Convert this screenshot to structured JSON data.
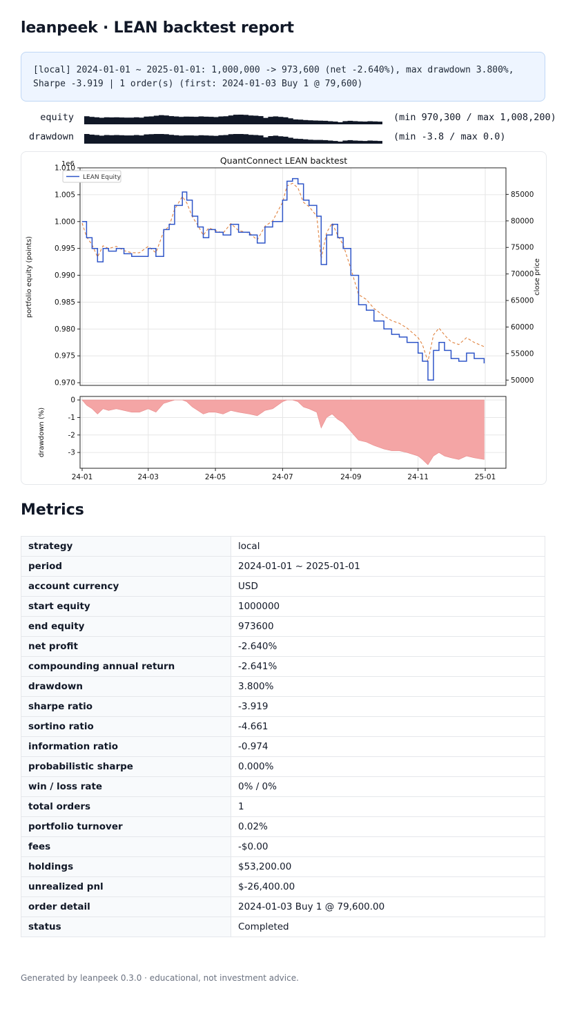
{
  "header": {
    "title": "leanpeek · LEAN backtest report"
  },
  "summary": {
    "line1": "[local] 2024-01-01 ~ 2025-01-01: 1,000,000 -> 973,600 (net -2.640%), max drawdown 3.800%,",
    "line2": "Sharpe -3.919 | 1 order(s) (first: 2024-01-03 Buy 1 @ 79,600)"
  },
  "sparklines": [
    {
      "label": "equity",
      "range_text": "(min 970,300 / max 1,008,200)"
    },
    {
      "label": "drawdown",
      "range_text": "(min -3.8 / max 0.0)"
    }
  ],
  "colors": {
    "equity_line": "#2e55c8",
    "price_line": "#e0823e",
    "drawdown_fill": "#f4a5a5",
    "spark": "#111827"
  },
  "chart_data": [
    {
      "type": "line",
      "title": "QuantConnect LEAN backtest",
      "ylabel": "portfolio equity (points)",
      "y_offset_text": "1e6",
      "y2label": "close price",
      "ylim": [
        0.9695,
        1.01
      ],
      "y2lim": [
        49000,
        90000
      ],
      "yticks": [
        0.97,
        0.975,
        0.98,
        0.985,
        0.99,
        0.995,
        1.0,
        1.005,
        1.01
      ],
      "y2ticks": [
        50000,
        55000,
        60000,
        65000,
        70000,
        75000,
        80000,
        85000
      ],
      "legend": "top-left",
      "grid": true,
      "series": [
        {
          "name": "LEAN Equity",
          "x": [
            "2024-01-01",
            "2024-01-05",
            "2024-01-10",
            "2024-01-15",
            "2024-01-20",
            "2024-01-25",
            "2024-02-01",
            "2024-02-08",
            "2024-02-15",
            "2024-02-22",
            "2024-03-01",
            "2024-03-08",
            "2024-03-15",
            "2024-03-20",
            "2024-03-25",
            "2024-04-01",
            "2024-04-05",
            "2024-04-10",
            "2024-04-15",
            "2024-04-20",
            "2024-04-25",
            "2024-05-01",
            "2024-05-08",
            "2024-05-15",
            "2024-05-22",
            "2024-06-01",
            "2024-06-08",
            "2024-06-15",
            "2024-06-22",
            "2024-07-01",
            "2024-07-05",
            "2024-07-10",
            "2024-07-15",
            "2024-07-20",
            "2024-07-25",
            "2024-08-01",
            "2024-08-05",
            "2024-08-10",
            "2024-08-15",
            "2024-08-20",
            "2024-08-25",
            "2024-09-01",
            "2024-09-08",
            "2024-09-15",
            "2024-09-22",
            "2024-10-01",
            "2024-10-08",
            "2024-10-15",
            "2024-10-22",
            "2024-11-01",
            "2024-11-05",
            "2024-11-10",
            "2024-11-15",
            "2024-11-20",
            "2024-11-25",
            "2024-12-01",
            "2024-12-08",
            "2024-12-15",
            "2024-12-22",
            "2024-12-31"
          ],
          "y": [
            1.0,
            0.997,
            0.995,
            0.9925,
            0.995,
            0.9945,
            0.995,
            0.994,
            0.9935,
            0.9935,
            0.995,
            0.9935,
            0.9985,
            0.9995,
            1.003,
            1.0055,
            1.004,
            1.001,
            0.999,
            0.997,
            0.9985,
            0.998,
            0.9975,
            0.9995,
            0.998,
            0.9975,
            0.996,
            0.999,
            1.0,
            1.004,
            1.0075,
            1.008,
            1.007,
            1.004,
            1.003,
            1.001,
            0.992,
            0.9975,
            0.9995,
            0.997,
            0.995,
            0.99,
            0.9845,
            0.9835,
            0.9815,
            0.98,
            0.979,
            0.9785,
            0.9775,
            0.9755,
            0.974,
            0.9705,
            0.976,
            0.9775,
            0.976,
            0.9745,
            0.974,
            0.9755,
            0.9745,
            0.9736
          ]
        },
        {
          "name": "",
          "x": [
            "2024-01-01",
            "2024-01-05",
            "2024-01-10",
            "2024-01-15",
            "2024-01-20",
            "2024-01-25",
            "2024-02-01",
            "2024-02-08",
            "2024-02-15",
            "2024-02-22",
            "2024-03-01",
            "2024-03-08",
            "2024-03-15",
            "2024-03-20",
            "2024-03-25",
            "2024-04-01",
            "2024-04-05",
            "2024-04-10",
            "2024-04-15",
            "2024-04-20",
            "2024-04-25",
            "2024-05-01",
            "2024-05-08",
            "2024-05-15",
            "2024-05-22",
            "2024-06-01",
            "2024-06-08",
            "2024-06-15",
            "2024-06-22",
            "2024-07-01",
            "2024-07-05",
            "2024-07-10",
            "2024-07-15",
            "2024-07-20",
            "2024-07-25",
            "2024-08-01",
            "2024-08-05",
            "2024-08-10",
            "2024-08-15",
            "2024-08-20",
            "2024-08-25",
            "2024-09-01",
            "2024-09-08",
            "2024-09-15",
            "2024-09-22",
            "2024-10-01",
            "2024-10-08",
            "2024-10-15",
            "2024-10-22",
            "2024-11-01",
            "2024-11-05",
            "2024-11-10",
            "2024-11-15",
            "2024-11-20",
            "2024-11-25",
            "2024-12-01",
            "2024-12-08",
            "2024-12-15",
            "2024-12-22",
            "2024-12-31"
          ],
          "y": [
            79600,
            77000,
            75500,
            73200,
            75300,
            74800,
            75200,
            74400,
            74000,
            74000,
            75200,
            74000,
            78000,
            79000,
            82200,
            84600,
            83400,
            80800,
            79200,
            77300,
            78700,
            78200,
            77700,
            79500,
            78200,
            77700,
            76400,
            79000,
            80000,
            83500,
            86600,
            87100,
            86200,
            83500,
            82700,
            80900,
            72800,
            77800,
            79600,
            77300,
            75500,
            71000,
            66100,
            65200,
            63500,
            62100,
            61200,
            60700,
            59800,
            58000,
            56700,
            53500,
            58500,
            59800,
            58500,
            57200,
            56700,
            58000,
            57100,
            56300
          ]
        }
      ]
    },
    {
      "type": "area",
      "ylabel": "drawdown (%)",
      "ylim": [
        -3.9,
        0.2
      ],
      "yticks": [
        0,
        -1,
        -2,
        -3
      ],
      "xticks": [
        "24-01",
        "24-03",
        "24-05",
        "24-07",
        "24-09",
        "24-11",
        "25-01"
      ],
      "xtick_dates": [
        "2024-01-01",
        "2024-03-01",
        "2024-05-01",
        "2024-07-01",
        "2024-09-01",
        "2024-11-01",
        "2025-01-01"
      ],
      "grid": true,
      "series": [
        {
          "name": "",
          "x": [
            "2024-01-01",
            "2024-01-05",
            "2024-01-10",
            "2024-01-15",
            "2024-01-20",
            "2024-01-25",
            "2024-02-01",
            "2024-02-08",
            "2024-02-15",
            "2024-02-22",
            "2024-03-01",
            "2024-03-08",
            "2024-03-15",
            "2024-03-20",
            "2024-03-25",
            "2024-04-01",
            "2024-04-05",
            "2024-04-10",
            "2024-04-15",
            "2024-04-20",
            "2024-04-25",
            "2024-05-01",
            "2024-05-08",
            "2024-05-15",
            "2024-05-22",
            "2024-06-01",
            "2024-06-08",
            "2024-06-15",
            "2024-06-22",
            "2024-07-01",
            "2024-07-05",
            "2024-07-10",
            "2024-07-15",
            "2024-07-20",
            "2024-07-25",
            "2024-08-01",
            "2024-08-05",
            "2024-08-10",
            "2024-08-15",
            "2024-08-20",
            "2024-08-25",
            "2024-09-01",
            "2024-09-08",
            "2024-09-15",
            "2024-09-22",
            "2024-10-01",
            "2024-10-08",
            "2024-10-15",
            "2024-10-22",
            "2024-11-01",
            "2024-11-05",
            "2024-11-10",
            "2024-11-15",
            "2024-11-20",
            "2024-11-25",
            "2024-12-01",
            "2024-12-08",
            "2024-12-15",
            "2024-12-22",
            "2024-12-31"
          ],
          "y": [
            0,
            -0.3,
            -0.5,
            -0.8,
            -0.5,
            -0.6,
            -0.5,
            -0.6,
            -0.7,
            -0.7,
            -0.5,
            -0.7,
            -0.2,
            -0.1,
            0,
            0,
            -0.1,
            -0.4,
            -0.6,
            -0.8,
            -0.7,
            -0.7,
            -0.8,
            -0.6,
            -0.7,
            -0.8,
            -0.9,
            -0.6,
            -0.5,
            -0.1,
            0,
            0,
            -0.1,
            -0.4,
            -0.5,
            -0.7,
            -1.6,
            -1.0,
            -0.8,
            -1.1,
            -1.3,
            -1.8,
            -2.3,
            -2.4,
            -2.6,
            -2.8,
            -2.9,
            -2.9,
            -3.0,
            -3.2,
            -3.4,
            -3.7,
            -3.2,
            -3.0,
            -3.2,
            -3.3,
            -3.4,
            -3.2,
            -3.3,
            -3.4
          ]
        }
      ]
    }
  ],
  "metrics_title": "Metrics",
  "metrics": [
    {
      "key": "strategy",
      "value": "local"
    },
    {
      "key": "period",
      "value": "2024-01-01 ~ 2025-01-01"
    },
    {
      "key": "account currency",
      "value": "USD"
    },
    {
      "key": "start equity",
      "value": "1000000"
    },
    {
      "key": "end equity",
      "value": "973600"
    },
    {
      "key": "net profit",
      "value": "-2.640%"
    },
    {
      "key": "compounding annual return",
      "value": "-2.641%"
    },
    {
      "key": "drawdown",
      "value": "3.800%"
    },
    {
      "key": "sharpe ratio",
      "value": "-3.919"
    },
    {
      "key": "sortino ratio",
      "value": "-4.661"
    },
    {
      "key": "information ratio",
      "value": "-0.974"
    },
    {
      "key": "probabilistic sharpe",
      "value": "0.000%"
    },
    {
      "key": "win / loss rate",
      "value": "0% / 0%"
    },
    {
      "key": "total orders",
      "value": "1"
    },
    {
      "key": "portfolio turnover",
      "value": "0.02%"
    },
    {
      "key": "fees",
      "value": "-$0.00"
    },
    {
      "key": "holdings",
      "value": "$53,200.00"
    },
    {
      "key": "unrealized pnl",
      "value": "$-26,400.00"
    },
    {
      "key": "order detail",
      "value": "2024-01-03 Buy 1 @ 79,600.00"
    },
    {
      "key": "status",
      "value": "Completed"
    }
  ],
  "footer": {
    "text": "Generated by leanpeek 0.3.0 · educational, not investment advice."
  }
}
